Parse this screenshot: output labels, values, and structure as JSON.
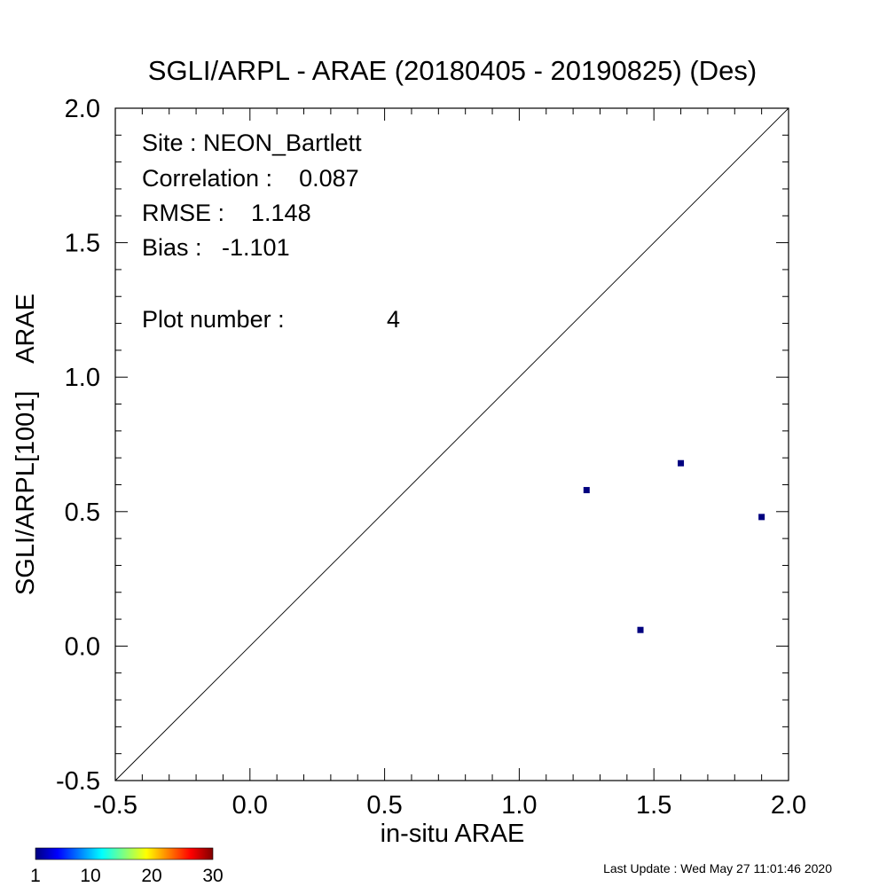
{
  "chart_data": {
    "type": "scatter",
    "title": "SGLI/ARPL - ARAE (20180405 - 20190825) (Des)",
    "xlabel": "in-situ ARAE",
    "ylabel": "SGLI/ARPL[1001]    ARAE",
    "xlim": [
      -0.5,
      2.0
    ],
    "ylim": [
      -0.5,
      2.0
    ],
    "x_ticks": [
      "-0.5",
      "0.0",
      "0.5",
      "1.0",
      "1.5",
      "2.0"
    ],
    "y_ticks": [
      "-0.5",
      "0.0",
      "0.5",
      "1.0",
      "1.5",
      "2.0"
    ],
    "one_to_one_line": true,
    "point_color": "#00007f",
    "points": [
      {
        "x": 1.25,
        "y": 0.58
      },
      {
        "x": 1.6,
        "y": 0.68
      },
      {
        "x": 1.9,
        "y": 0.48
      },
      {
        "x": 1.45,
        "y": 0.06
      }
    ],
    "stats": {
      "site": "Site : NEON_Bartlett",
      "correlation": "Correlation :    0.087",
      "rmse": "RMSE :    1.148",
      "bias": "Bias :   -1.101",
      "plot_number_label": "Plot number :",
      "plot_number_value": "4"
    },
    "colorbar": {
      "colormap": "jet",
      "ticks": [
        "1",
        "10",
        "20",
        "30"
      ],
      "range": [
        1,
        30
      ]
    }
  },
  "footer": {
    "last_update": "Last Update : Wed May 27 11:01:46 2020"
  }
}
